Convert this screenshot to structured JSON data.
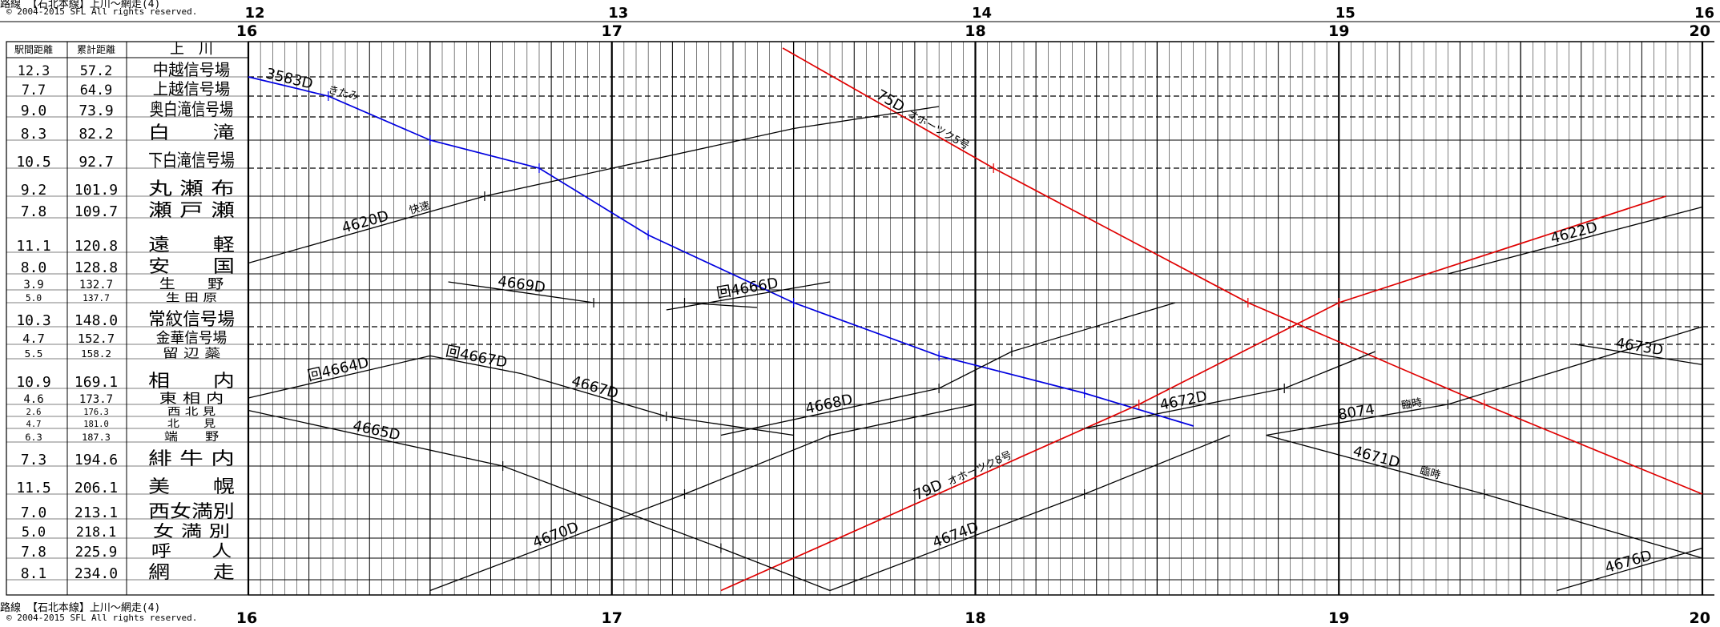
{
  "header": {
    "title_caption": "路線 【石北本線】上川～網走(4)",
    "copyright": "© 2004-2015 SFL All rights reserved.",
    "col_interval": "駅間距離",
    "col_cumulative": "累計距離",
    "col_origin_station": "上　川"
  },
  "footer": {
    "title_caption": "路線 【石北本線】上川～網走(4)",
    "copyright": "© 2004-2015 SFL All rights reserved."
  },
  "hours_top_small": [
    "12",
    "13",
    "14",
    "15",
    "16"
  ],
  "hours_big": [
    "16",
    "17",
    "18",
    "19",
    "20"
  ],
  "stations": [
    {
      "name": "中越信号場",
      "interval": "12.3",
      "cumulative": "57.2",
      "kind": "signal"
    },
    {
      "name": "上越信号場",
      "interval": "7.7",
      "cumulative": "64.9",
      "kind": "signal"
    },
    {
      "name": "奥白滝信号場",
      "interval": "9.0",
      "cumulative": "73.9",
      "kind": "signal"
    },
    {
      "name": "白　　滝",
      "interval": "8.3",
      "cumulative": "82.2",
      "kind": "station"
    },
    {
      "name": "下白滝信号場",
      "interval": "10.5",
      "cumulative": "92.7",
      "kind": "signal"
    },
    {
      "name": "丸 瀬 布",
      "interval": "9.2",
      "cumulative": "101.9",
      "kind": "station"
    },
    {
      "name": "瀬 戸 瀬",
      "interval": "7.8",
      "cumulative": "109.7",
      "kind": "station"
    },
    {
      "name": "遠　　軽",
      "interval": "11.1",
      "cumulative": "120.8",
      "kind": "station"
    },
    {
      "name": "安　　国",
      "interval": "8.0",
      "cumulative": "128.8",
      "kind": "station"
    },
    {
      "name": "生　　野",
      "interval": "3.9",
      "cumulative": "132.7",
      "kind": "station"
    },
    {
      "name": "生 田 原",
      "interval": "5.0",
      "cumulative": "137.7",
      "kind": "station"
    },
    {
      "name": "常紋信号場",
      "interval": "10.3",
      "cumulative": "148.0",
      "kind": "signal"
    },
    {
      "name": "金華信号場",
      "interval": "4.7",
      "cumulative": "152.7",
      "kind": "signal"
    },
    {
      "name": "留 辺 蘂",
      "interval": "5.5",
      "cumulative": "158.2",
      "kind": "station"
    },
    {
      "name": "相　　内",
      "interval": "10.9",
      "cumulative": "169.1",
      "kind": "station"
    },
    {
      "name": "東 相 内",
      "interval": "4.6",
      "cumulative": "173.7",
      "kind": "station"
    },
    {
      "name": "西 北 見",
      "interval": "2.6",
      "cumulative": "176.3",
      "kind": "station"
    },
    {
      "name": "北　　見",
      "interval": "4.7",
      "cumulative": "181.0",
      "kind": "station"
    },
    {
      "name": "端　　野",
      "interval": "6.3",
      "cumulative": "187.3",
      "kind": "station"
    },
    {
      "name": "緋 牛 内",
      "interval": "7.3",
      "cumulative": "194.6",
      "kind": "station"
    },
    {
      "name": "美　　幌",
      "interval": "11.5",
      "cumulative": "206.1",
      "kind": "station"
    },
    {
      "name": "西女満別",
      "interval": "7.0",
      "cumulative": "213.1",
      "kind": "station"
    },
    {
      "name": "女 満 別",
      "interval": "5.0",
      "cumulative": "218.1",
      "kind": "station"
    },
    {
      "name": "呼　　人",
      "interval": "7.8",
      "cumulative": "225.9",
      "kind": "station"
    },
    {
      "name": "網　　走",
      "interval": "8.1",
      "cumulative": "234.0",
      "kind": "station"
    }
  ],
  "colors": {
    "limited_express": "#e00000",
    "rapid": "#0000e0",
    "local": "#000000",
    "grid": "#000000",
    "dashed": "#777777"
  },
  "trains": [
    {
      "label": "3583D",
      "note": "きたみ",
      "color": "blue",
      "dir": "down",
      "pts": [
        [
          16.0,
          0.0
        ],
        [
          16.22,
          1.0
        ],
        [
          16.5,
          3.0
        ],
        [
          16.8,
          4.0
        ],
        [
          17.1,
          6.5
        ],
        [
          17.5,
          10.0
        ],
        [
          17.9,
          12.8
        ],
        [
          18.3,
          14.3
        ],
        [
          18.6,
          16.8
        ]
      ]
    },
    {
      "label": "75D",
      "note": "オホーツク5号",
      "color": "red",
      "dir": "down",
      "pts": [
        [
          17.47,
          -1.5
        ],
        [
          18.05,
          4.0
        ],
        [
          18.75,
          10.0
        ],
        [
          19.4,
          15.0
        ],
        [
          20.0,
          20.0
        ]
      ]
    },
    {
      "label": "79D",
      "note": "オホーツク8号",
      "color": "red",
      "dir": "up",
      "pts": [
        [
          17.3,
          24.5
        ],
        [
          18.45,
          15.0
        ],
        [
          19.0,
          10.0
        ],
        [
          19.9,
          5.0
        ]
      ]
    },
    {
      "label": "4620D",
      "note": "快速",
      "color": "black",
      "dir": "up",
      "pts": [
        [
          16.0,
          7.5
        ],
        [
          16.65,
          5.0
        ],
        [
          17.5,
          2.5
        ],
        [
          17.9,
          1.5
        ]
      ]
    },
    {
      "label": "4622D",
      "note": "",
      "color": "black",
      "dir": "up",
      "pts": [
        [
          19.3,
          8.0
        ],
        [
          20.0,
          5.5
        ]
      ]
    },
    {
      "label": "4669D",
      "note": "",
      "color": "black",
      "dir": "down",
      "pts": [
        [
          16.55,
          8.5
        ],
        [
          16.95,
          10.0
        ],
        [
          17.2,
          10.0
        ],
        [
          17.4,
          10.2
        ]
      ]
    },
    {
      "label": "回4666D",
      "note": "",
      "color": "black",
      "dir": "up",
      "pts": [
        [
          17.15,
          10.3
        ],
        [
          17.6,
          8.5
        ]
      ]
    },
    {
      "label": "回4664D",
      "note": "",
      "color": "black",
      "dir": "up",
      "pts": [
        [
          16.0,
          14.6
        ],
        [
          16.5,
          12.8
        ]
      ]
    },
    {
      "label": "回4667D",
      "note": "",
      "color": "black",
      "dir": "down",
      "pts": [
        [
          16.5,
          12.8
        ],
        [
          16.75,
          13.5
        ]
      ]
    },
    {
      "label": "4667D",
      "note": "",
      "color": "black",
      "dir": "down",
      "pts": [
        [
          16.75,
          13.5
        ],
        [
          17.15,
          16.0
        ],
        [
          17.5,
          17.5
        ]
      ]
    },
    {
      "label": "4668D",
      "note": "",
      "color": "black",
      "dir": "up",
      "pts": [
        [
          17.3,
          17.5
        ],
        [
          17.9,
          14.0
        ],
        [
          18.1,
          12.5
        ],
        [
          18.55,
          10.0
        ]
      ]
    },
    {
      "label": "4672D",
      "note": "",
      "color": "black",
      "dir": "up",
      "pts": [
        [
          18.3,
          17.0
        ],
        [
          18.85,
          14.0
        ],
        [
          19.1,
          12.5
        ]
      ]
    },
    {
      "label": "8074",
      "note": "臨時",
      "color": "black",
      "dir": "up",
      "pts": [
        [
          18.8,
          17.5
        ],
        [
          19.3,
          15.0
        ],
        [
          20.0,
          11.0
        ]
      ]
    },
    {
      "label": "4673D",
      "note": "",
      "color": "black",
      "dir": "down",
      "pts": [
        [
          19.65,
          12.0
        ],
        [
          20.0,
          13.2
        ]
      ]
    },
    {
      "label": "4665D",
      "note": "",
      "color": "black",
      "dir": "down",
      "pts": [
        [
          16.0,
          15.5
        ],
        [
          16.7,
          19.0
        ],
        [
          17.3,
          22.5
        ],
        [
          17.6,
          24.5
        ]
      ]
    },
    {
      "label": "4670D",
      "note": "",
      "color": "black",
      "dir": "up",
      "pts": [
        [
          16.5,
          24.5
        ],
        [
          17.2,
          20.0
        ],
        [
          17.6,
          17.5
        ],
        [
          18.0,
          15.0
        ]
      ]
    },
    {
      "label": "4674D",
      "note": "",
      "color": "black",
      "dir": "up",
      "pts": [
        [
          17.6,
          24.5
        ],
        [
          18.3,
          20.0
        ],
        [
          18.7,
          17.5
        ]
      ]
    },
    {
      "label": "4671D",
      "note": "臨時",
      "color": "black",
      "dir": "down",
      "pts": [
        [
          18.8,
          17.5
        ],
        [
          19.4,
          20.0
        ],
        [
          20.0,
          23.0
        ]
      ]
    },
    {
      "label": "4676D",
      "note": "",
      "color": "black",
      "dir": "up",
      "pts": [
        [
          19.6,
          24.5
        ],
        [
          20.0,
          22.5
        ]
      ]
    }
  ]
}
